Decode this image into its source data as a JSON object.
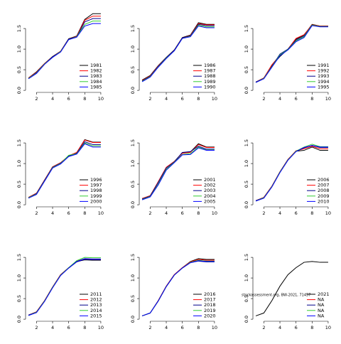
{
  "chart_data": [
    {
      "type": "line",
      "x": [
        1,
        2,
        3,
        4,
        5,
        6,
        7,
        8,
        9,
        10
      ],
      "xlim": [
        0.64,
        10.36
      ],
      "xticks": [
        2,
        4,
        6,
        8,
        10
      ],
      "ylim": [
        -0.05,
        1.95
      ],
      "yticks": [
        {
          "value": 0,
          "label": "0.0"
        },
        0.5,
        {
          "value": 1,
          "label": "1.0"
        },
        1.5
      ],
      "series": [
        {
          "name": "1981",
          "color": "#000000",
          "values": [
            0.3,
            0.45,
            0.65,
            0.82,
            0.95,
            1.25,
            1.32,
            1.72,
            1.86,
            1.86
          ]
        },
        {
          "name": "1982",
          "color": "#ff0000",
          "values": [
            0.3,
            0.44,
            0.65,
            0.81,
            0.95,
            1.24,
            1.31,
            1.7,
            1.8,
            1.8
          ]
        },
        {
          "name": "1983",
          "color": "#00008b",
          "values": [
            0.29,
            0.43,
            0.64,
            0.81,
            0.94,
            1.24,
            1.3,
            1.66,
            1.74,
            1.74
          ]
        },
        {
          "name": "1984",
          "color": "#32cd32",
          "values": [
            0.29,
            0.42,
            0.64,
            0.8,
            0.94,
            1.23,
            1.3,
            1.6,
            1.68,
            1.68
          ]
        },
        {
          "name": "1985",
          "color": "#0000ff",
          "values": [
            0.28,
            0.41,
            0.63,
            0.8,
            0.93,
            1.23,
            1.29,
            1.56,
            1.62,
            1.62
          ]
        }
      ]
    },
    {
      "type": "line",
      "x": [
        1,
        2,
        3,
        4,
        5,
        6,
        7,
        8,
        9,
        10
      ],
      "xlim": [
        0.64,
        10.36
      ],
      "xticks": [
        2,
        4,
        6,
        8,
        10
      ],
      "ylim": [
        -0.05,
        1.95
      ],
      "yticks": [
        {
          "value": 0,
          "label": "0.0"
        },
        0.5,
        {
          "value": 1,
          "label": "1.0"
        },
        1.5
      ],
      "series": [
        {
          "name": "1986",
          "color": "#000000",
          "values": [
            0.25,
            0.36,
            0.6,
            0.8,
            0.98,
            1.28,
            1.34,
            1.64,
            1.6,
            1.6
          ]
        },
        {
          "name": "1987",
          "color": "#ff0000",
          "values": [
            0.24,
            0.35,
            0.59,
            0.79,
            0.97,
            1.27,
            1.33,
            1.62,
            1.59,
            1.59
          ]
        },
        {
          "name": "1988",
          "color": "#00008b",
          "values": [
            0.23,
            0.34,
            0.58,
            0.79,
            0.97,
            1.27,
            1.32,
            1.6,
            1.57,
            1.57
          ]
        },
        {
          "name": "1989",
          "color": "#32cd32",
          "values": [
            0.22,
            0.33,
            0.57,
            0.78,
            0.96,
            1.26,
            1.31,
            1.58,
            1.54,
            1.54
          ]
        },
        {
          "name": "1990",
          "color": "#0000ff",
          "values": [
            0.21,
            0.32,
            0.56,
            0.77,
            0.96,
            1.26,
            1.3,
            1.56,
            1.52,
            1.52
          ]
        }
      ]
    },
    {
      "type": "line",
      "x": [
        1,
        2,
        3,
        4,
        5,
        6,
        7,
        8,
        9,
        10
      ],
      "xlim": [
        0.64,
        10.36
      ],
      "xticks": [
        2,
        4,
        6,
        8,
        10
      ],
      "ylim": [
        -0.05,
        1.95
      ],
      "yticks": [
        {
          "value": 0,
          "label": "0.0"
        },
        0.5,
        {
          "value": 1,
          "label": "1.0"
        },
        1.5
      ],
      "series": [
        {
          "name": "1991",
          "color": "#000000",
          "values": [
            0.2,
            0.3,
            0.6,
            0.82,
            1.0,
            1.24,
            1.34,
            1.6,
            1.56,
            1.56
          ]
        },
        {
          "name": "1992",
          "color": "#ff0000",
          "values": [
            0.2,
            0.3,
            0.62,
            0.85,
            1.0,
            1.26,
            1.35,
            1.59,
            1.56,
            1.56
          ]
        },
        {
          "name": "1993",
          "color": "#00008b",
          "values": [
            0.2,
            0.29,
            0.58,
            0.88,
            1.0,
            1.22,
            1.32,
            1.58,
            1.55,
            1.55
          ]
        },
        {
          "name": "1994",
          "color": "#32cd32",
          "values": [
            0.19,
            0.29,
            0.57,
            0.86,
            0.99,
            1.2,
            1.3,
            1.58,
            1.55,
            1.55
          ]
        },
        {
          "name": "1995",
          "color": "#0000ff",
          "values": [
            0.19,
            0.28,
            0.56,
            0.84,
            0.98,
            1.18,
            1.28,
            1.57,
            1.54,
            1.54
          ]
        }
      ]
    },
    {
      "type": "line",
      "x": [
        1,
        2,
        3,
        4,
        5,
        6,
        7,
        8,
        9,
        10
      ],
      "xlim": [
        0.64,
        10.36
      ],
      "xticks": [
        2,
        4,
        6,
        8,
        10
      ],
      "ylim": [
        -0.05,
        1.95
      ],
      "yticks": [
        {
          "value": 0,
          "label": "0.0"
        },
        0.5,
        {
          "value": 1,
          "label": "1.0"
        },
        1.5
      ],
      "series": [
        {
          "name": "1996",
          "color": "#000000",
          "values": [
            0.18,
            0.28,
            0.6,
            0.92,
            1.02,
            1.18,
            1.26,
            1.58,
            1.52,
            1.52
          ]
        },
        {
          "name": "1997",
          "color": "#ff0000",
          "values": [
            0.18,
            0.28,
            0.6,
            0.92,
            1.02,
            1.19,
            1.27,
            1.57,
            1.51,
            1.51
          ]
        },
        {
          "name": "1998",
          "color": "#00008b",
          "values": [
            0.17,
            0.27,
            0.59,
            0.91,
            1.01,
            1.18,
            1.25,
            1.53,
            1.46,
            1.46
          ]
        },
        {
          "name": "1999",
          "color": "#32cd32",
          "values": [
            0.17,
            0.26,
            0.58,
            0.9,
            1.0,
            1.2,
            1.24,
            1.5,
            1.43,
            1.43
          ]
        },
        {
          "name": "2000",
          "color": "#0000ff",
          "values": [
            0.16,
            0.25,
            0.57,
            0.89,
            0.99,
            1.17,
            1.23,
            1.48,
            1.4,
            1.4
          ]
        }
      ]
    },
    {
      "type": "line",
      "x": [
        1,
        2,
        3,
        4,
        5,
        6,
        7,
        8,
        9,
        10
      ],
      "xlim": [
        0.64,
        10.36
      ],
      "xticks": [
        2,
        4,
        6,
        8,
        10
      ],
      "ylim": [
        -0.05,
        1.95
      ],
      "yticks": [
        {
          "value": 0,
          "label": "0.0"
        },
        0.5,
        {
          "value": 1,
          "label": "1.0"
        },
        1.5
      ],
      "series": [
        {
          "name": "2001",
          "color": "#000000",
          "values": [
            0.15,
            0.22,
            0.55,
            0.9,
            1.05,
            1.26,
            1.28,
            1.48,
            1.4,
            1.4
          ]
        },
        {
          "name": "2002",
          "color": "#ff0000",
          "values": [
            0.15,
            0.22,
            0.56,
            0.91,
            1.05,
            1.25,
            1.27,
            1.46,
            1.39,
            1.39
          ]
        },
        {
          "name": "2003",
          "color": "#00008b",
          "values": [
            0.14,
            0.21,
            0.54,
            0.89,
            1.04,
            1.27,
            1.29,
            1.42,
            1.35,
            1.35
          ]
        },
        {
          "name": "2004",
          "color": "#32cd32",
          "values": [
            0.13,
            0.2,
            0.5,
            0.86,
            1.03,
            1.22,
            1.24,
            1.4,
            1.33,
            1.33
          ]
        },
        {
          "name": "2005",
          "color": "#0000ff",
          "values": [
            0.12,
            0.19,
            0.48,
            0.84,
            1.02,
            1.21,
            1.22,
            1.38,
            1.32,
            1.32
          ]
        }
      ]
    },
    {
      "type": "line",
      "x": [
        1,
        2,
        3,
        4,
        5,
        6,
        7,
        8,
        9,
        10
      ],
      "xlim": [
        0.64,
        10.36
      ],
      "xticks": [
        2,
        4,
        6,
        8,
        10
      ],
      "ylim": [
        -0.05,
        1.95
      ],
      "yticks": [
        {
          "value": 0,
          "label": "0.0"
        },
        0.5,
        {
          "value": 1,
          "label": "1.0"
        },
        1.5
      ],
      "series": [
        {
          "name": "2006",
          "color": "#000000",
          "values": [
            0.1,
            0.18,
            0.45,
            0.8,
            1.1,
            1.3,
            1.32,
            1.4,
            1.32,
            1.32
          ]
        },
        {
          "name": "2007",
          "color": "#ff0000",
          "values": [
            0.1,
            0.18,
            0.45,
            0.8,
            1.1,
            1.31,
            1.36,
            1.42,
            1.36,
            1.36
          ]
        },
        {
          "name": "2008",
          "color": "#00008b",
          "values": [
            0.1,
            0.17,
            0.44,
            0.79,
            1.09,
            1.3,
            1.38,
            1.44,
            1.39,
            1.39
          ]
        },
        {
          "name": "2009",
          "color": "#32cd32",
          "values": [
            0.09,
            0.17,
            0.44,
            0.79,
            1.09,
            1.3,
            1.4,
            1.47,
            1.41,
            1.41
          ]
        },
        {
          "name": "2010",
          "color": "#0000ff",
          "values": [
            0.09,
            0.16,
            0.43,
            0.78,
            1.08,
            1.29,
            1.39,
            1.44,
            1.4,
            1.4
          ]
        }
      ]
    },
    {
      "type": "line",
      "x": [
        1,
        2,
        3,
        4,
        5,
        6,
        7,
        8,
        9,
        10
      ],
      "xlim": [
        0.64,
        10.36
      ],
      "xticks": [
        2,
        4,
        6,
        8,
        10
      ],
      "ylim": [
        -0.05,
        1.95
      ],
      "yticks": [
        {
          "value": 0,
          "label": "0.0"
        },
        0.5,
        {
          "value": 1,
          "label": "1.0"
        },
        1.5
      ],
      "series": [
        {
          "name": "2011",
          "color": "#000000",
          "values": [
            0.1,
            0.18,
            0.45,
            0.78,
            1.08,
            1.25,
            1.4,
            1.44,
            1.43,
            1.43
          ]
        },
        {
          "name": "2012",
          "color": "#ff0000",
          "values": [
            0.1,
            0.18,
            0.45,
            0.78,
            1.08,
            1.25,
            1.41,
            1.46,
            1.45,
            1.45
          ]
        },
        {
          "name": "2013",
          "color": "#00008b",
          "values": [
            0.1,
            0.17,
            0.44,
            0.77,
            1.07,
            1.24,
            1.39,
            1.45,
            1.44,
            1.44
          ]
        },
        {
          "name": "2014",
          "color": "#32cd32",
          "values": [
            0.09,
            0.17,
            0.44,
            0.77,
            1.07,
            1.25,
            1.42,
            1.5,
            1.49,
            1.49
          ]
        },
        {
          "name": "2015",
          "color": "#0000ff",
          "values": [
            0.09,
            0.16,
            0.43,
            0.76,
            1.06,
            1.24,
            1.4,
            1.47,
            1.46,
            1.46
          ]
        }
      ]
    },
    {
      "type": "line",
      "x": [
        1,
        2,
        3,
        4,
        5,
        6,
        7,
        8,
        9,
        10
      ],
      "xlim": [
        0.64,
        10.36
      ],
      "xticks": [
        2,
        4,
        6,
        8,
        10
      ],
      "ylim": [
        -0.05,
        1.95
      ],
      "yticks": [
        {
          "value": 0,
          "label": "0.0"
        },
        0.5,
        {
          "value": 1,
          "label": "1.0"
        },
        1.5
      ],
      "series": [
        {
          "name": "2016",
          "color": "#000000",
          "values": [
            0.08,
            0.15,
            0.45,
            0.8,
            1.08,
            1.25,
            1.4,
            1.47,
            1.45,
            1.45
          ]
        },
        {
          "name": "2017",
          "color": "#ff0000",
          "values": [
            0.08,
            0.15,
            0.45,
            0.8,
            1.08,
            1.25,
            1.39,
            1.45,
            1.43,
            1.43
          ]
        },
        {
          "name": "2018",
          "color": "#00008b",
          "values": [
            0.08,
            0.15,
            0.44,
            0.79,
            1.07,
            1.24,
            1.37,
            1.41,
            1.39,
            1.39
          ]
        },
        {
          "name": "2019",
          "color": "#32cd32",
          "values": [
            0.08,
            0.15,
            0.44,
            0.79,
            1.07,
            1.24,
            1.38,
            1.43,
            1.41,
            1.41
          ]
        },
        {
          "name": "2020",
          "color": "#0000ff",
          "values": [
            0.08,
            0.15,
            0.44,
            0.79,
            1.07,
            1.24,
            1.37,
            1.42,
            1.4,
            1.4
          ]
        }
      ]
    },
    {
      "type": "line",
      "x": [
        1,
        2,
        3,
        4,
        5,
        6,
        7,
        8,
        9,
        10
      ],
      "xlim": [
        0.64,
        10.36
      ],
      "xticks": [
        2,
        4,
        6,
        8,
        10
      ],
      "ylim": [
        -0.05,
        1.95
      ],
      "yticks": [
        {
          "value": 0,
          "label": "0.0"
        },
        0.5,
        {
          "value": 1,
          "label": "1.0"
        },
        1.5
      ],
      "annotation": "stockassessment.org, BW-2021, 71457",
      "series": [
        {
          "name": "2021",
          "color": "#000000",
          "values": [
            0.08,
            0.15,
            0.45,
            0.8,
            1.08,
            1.25,
            1.38,
            1.4,
            1.38,
            1.38
          ]
        },
        {
          "name": "NA",
          "color": "#ff0000",
          "values": [
            null,
            null,
            null,
            null,
            null,
            null,
            null,
            null,
            null,
            null
          ]
        },
        {
          "name": "NA",
          "color": "#00008b",
          "values": [
            null,
            null,
            null,
            null,
            null,
            null,
            null,
            null,
            null,
            null
          ]
        },
        {
          "name": "NA",
          "color": "#32cd32",
          "values": [
            null,
            null,
            null,
            null,
            null,
            null,
            null,
            null,
            null,
            null
          ]
        },
        {
          "name": "NA",
          "color": "#0000ff",
          "values": [
            null,
            null,
            null,
            null,
            null,
            null,
            null,
            null,
            null,
            null
          ]
        }
      ]
    }
  ]
}
